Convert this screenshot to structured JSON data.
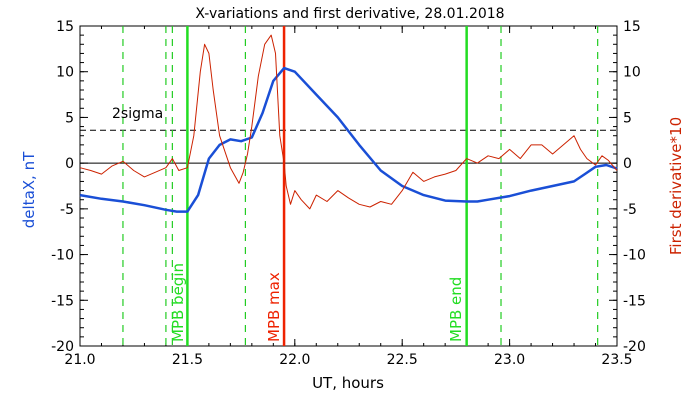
{
  "chart_data": {
    "type": "line",
    "title": "X-variations and first derivative, 28.01.2018",
    "xlabel": "UT, hours",
    "ylabel_left": "deltaX, nT",
    "ylabel_right": "First derivative*10",
    "xlim": [
      21.0,
      23.5
    ],
    "ylim": [
      -20,
      15
    ],
    "x_ticks": [
      "21.0",
      "21.5",
      "22.0",
      "22.5",
      "23.0",
      "23.5"
    ],
    "y_ticks": [
      "15",
      "10",
      "5",
      "0",
      "-5",
      "-10",
      "-15",
      "-20"
    ],
    "colors": {
      "deltaX": "#1a4fd6",
      "derivative": "#cc2200",
      "mpb_markers": "#22dd22",
      "mpb_max": "#ee2200",
      "dashed_green": "#22cc22"
    },
    "sigma_level": 3.6,
    "sigma_label": "2sigma",
    "series": [
      {
        "name": "deltaX",
        "x": [
          21.0,
          21.1,
          21.2,
          21.3,
          21.4,
          21.45,
          21.5,
          21.55,
          21.6,
          21.65,
          21.7,
          21.75,
          21.8,
          21.85,
          21.9,
          21.95,
          22.0,
          22.1,
          22.2,
          22.3,
          22.4,
          22.5,
          22.6,
          22.7,
          22.8,
          22.85,
          22.9,
          23.0,
          23.1,
          23.2,
          23.3,
          23.35,
          23.4,
          23.45,
          23.5
        ],
        "values": [
          -3.5,
          -3.9,
          -4.2,
          -4.6,
          -5.1,
          -5.3,
          -5.3,
          -3.5,
          0.5,
          2.0,
          2.6,
          2.4,
          2.8,
          5.5,
          9.0,
          10.4,
          10.0,
          7.5,
          5.0,
          2.0,
          -0.8,
          -2.5,
          -3.5,
          -4.1,
          -4.2,
          -4.2,
          -4.0,
          -3.6,
          -3.0,
          -2.5,
          -2.0,
          -1.2,
          -0.4,
          -0.2,
          -0.6
        ]
      },
      {
        "name": "derivative",
        "x": [
          21.0,
          21.05,
          21.1,
          21.15,
          21.2,
          21.25,
          21.3,
          21.35,
          21.4,
          21.43,
          21.46,
          21.5,
          21.53,
          21.56,
          21.58,
          21.6,
          21.62,
          21.65,
          21.7,
          21.74,
          21.76,
          21.78,
          21.8,
          21.83,
          21.86,
          21.89,
          21.91,
          21.93,
          21.95,
          21.96,
          21.98,
          22.0,
          22.03,
          22.07,
          22.1,
          22.15,
          22.2,
          22.25,
          22.3,
          22.35,
          22.4,
          22.45,
          22.5,
          22.55,
          22.6,
          22.65,
          22.7,
          22.75,
          22.8,
          22.85,
          22.9,
          22.95,
          23.0,
          23.05,
          23.1,
          23.15,
          23.2,
          23.25,
          23.3,
          23.33,
          23.36,
          23.4,
          23.43,
          23.46,
          23.5
        ],
        "values": [
          -0.5,
          -0.8,
          -1.2,
          -0.3,
          0.2,
          -0.8,
          -1.5,
          -1.0,
          -0.5,
          0.5,
          -0.8,
          -0.5,
          3.0,
          10.0,
          13.0,
          12.0,
          8.0,
          3.0,
          -0.5,
          -2.2,
          -1.0,
          1.0,
          4.0,
          9.5,
          13.0,
          14.0,
          12.0,
          3.0,
          0.0,
          -2.5,
          -4.5,
          -3.0,
          -4.0,
          -5.0,
          -3.5,
          -4.2,
          -3.0,
          -3.8,
          -4.5,
          -4.8,
          -4.2,
          -4.5,
          -3.0,
          -1.0,
          -2.0,
          -1.5,
          -1.2,
          -0.8,
          0.5,
          0.0,
          0.8,
          0.5,
          1.5,
          0.5,
          2.0,
          2.0,
          1.0,
          2.0,
          3.0,
          1.5,
          0.5,
          -0.2,
          0.8,
          0.3,
          -0.8
        ]
      }
    ],
    "markers": {
      "dashed_green_x": [
        21.2,
        21.4,
        21.43,
        21.77,
        22.96,
        23.41
      ],
      "mpb_begin": {
        "x": 21.5,
        "label": "MPB begin"
      },
      "mpb_max": {
        "x": 21.95,
        "label": "MPB max"
      },
      "mpb_end": {
        "x": 22.8,
        "label": "MPB end"
      }
    }
  }
}
